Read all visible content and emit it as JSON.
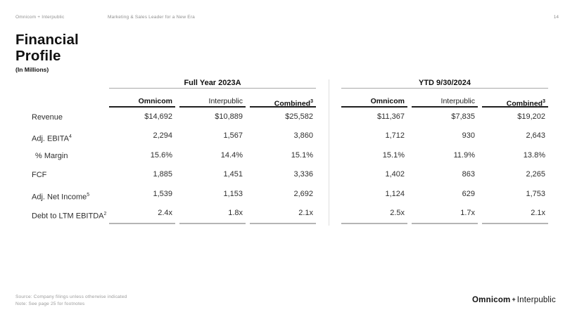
{
  "top_bar": {
    "brand": "Omnicom + Interpublic",
    "subtitle": "Marketing & Sales Leader for a New Era",
    "page_number": "14"
  },
  "title": {
    "line1": "Financial",
    "line2": "Profile",
    "units": "(In Millions)"
  },
  "table": {
    "row_labels": [
      {
        "label": "Revenue",
        "sup": ""
      },
      {
        "label": "Adj. EBITA",
        "sup": "4"
      },
      {
        "label": "% Margin",
        "sup": ""
      },
      {
        "label": "FCF",
        "sup": ""
      },
      {
        "label": "Adj. Net Income",
        "sup": "5"
      },
      {
        "label": "Debt to LTM EBITDA",
        "sup": "2"
      }
    ],
    "groups": [
      {
        "header": "Full Year 2023A",
        "columns": [
          {
            "name": "Omnicom",
            "sup": "",
            "values": [
              "$14,692",
              "2,294",
              "15.6%",
              "1,885",
              "1,539",
              "2.4x"
            ]
          },
          {
            "name": "Interpublic",
            "sup": "",
            "values": [
              "$10,889",
              "1,567",
              "14.4%",
              "1,451",
              "1,153",
              "1.8x"
            ]
          },
          {
            "name": "Combined",
            "sup": "3",
            "values": [
              "$25,582",
              "3,860",
              "15.1%",
              "3,336",
              "2,692",
              "2.1x"
            ]
          }
        ]
      },
      {
        "header": "YTD 9/30/2024",
        "columns": [
          {
            "name": "Omnicom",
            "sup": "",
            "values": [
              "$11,367",
              "1,712",
              "15.1%",
              "1,402",
              "1,124",
              "2.5x"
            ]
          },
          {
            "name": "Interpublic",
            "sup": "",
            "values": [
              "$7,835",
              "930",
              "11.9%",
              "863",
              "629",
              "1.7x"
            ]
          },
          {
            "name": "Combined",
            "sup": "3",
            "values": [
              "$19,202",
              "2,643",
              "13.8%",
              "2,265",
              "1,753",
              "2.1x"
            ]
          }
        ]
      }
    ]
  },
  "footer": {
    "source": "Source: Company filings unless otherwise indicated",
    "note": "Note: See page 25 for footnotes",
    "logo": {
      "left": "Omnicom",
      "plus": "+",
      "right": "Interpublic"
    }
  },
  "colors": {
    "text_primary": "#1a1a1a",
    "text_muted": "#8f8f8f",
    "rule_dark": "#1f1f1f",
    "rule_gray": "#a8a8a8",
    "rule_light": "#b5b5b5",
    "divider": "#dedede"
  }
}
